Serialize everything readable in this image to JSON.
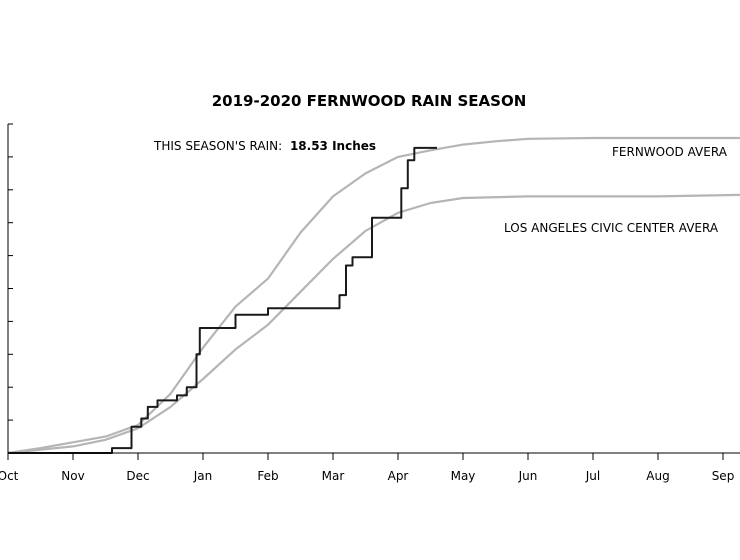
{
  "chart_data": {
    "type": "line",
    "title": "2019-2020 FERNWOOD RAIN SEASON",
    "xlabel": "",
    "ylabel": "",
    "grid": false,
    "categories": [
      "Oct",
      "Nov",
      "Dec",
      "Jan",
      "Feb",
      "Mar",
      "Apr",
      "May",
      "Jun",
      "Jul",
      "Aug",
      "Sep"
    ],
    "xlim": [
      0,
      11.4
    ],
    "ylim": [
      0,
      20
    ],
    "season_total": {
      "label": "THIS SEASON'S RAIN:",
      "value": "18.53 Inches"
    },
    "series": [
      {
        "name": "FERNWOOD AVERAGE",
        "label_text": "FERNWOOD AVERA",
        "color": "#b5b5b5",
        "points": [
          [
            0,
            0
          ],
          [
            0.5,
            0.3
          ],
          [
            1,
            0.65
          ],
          [
            1.5,
            1.0
          ],
          [
            2,
            1.7
          ],
          [
            2.5,
            3.6
          ],
          [
            3,
            6.4
          ],
          [
            3.5,
            8.9
          ],
          [
            4,
            10.6
          ],
          [
            4.5,
            13.4
          ],
          [
            5,
            15.6
          ],
          [
            5.5,
            17.0
          ],
          [
            6,
            18.0
          ],
          [
            6.5,
            18.4
          ],
          [
            7,
            18.75
          ],
          [
            7.5,
            18.95
          ],
          [
            8,
            19.1
          ],
          [
            9,
            19.15
          ],
          [
            10,
            19.15
          ],
          [
            11.4,
            19.15
          ]
        ]
      },
      {
        "name": "LOS ANGELES CIVIC CENTER AVERAGE",
        "label_text": "LOS ANGELES CIVIC CENTER AVERA",
        "color": "#b5b5b5",
        "points": [
          [
            0,
            0
          ],
          [
            1,
            0.4
          ],
          [
            1.5,
            0.8
          ],
          [
            2,
            1.5
          ],
          [
            2.5,
            2.8
          ],
          [
            3,
            4.5
          ],
          [
            3.5,
            6.3
          ],
          [
            4,
            7.8
          ],
          [
            4.5,
            9.8
          ],
          [
            5,
            11.8
          ],
          [
            5.5,
            13.5
          ],
          [
            6,
            14.6
          ],
          [
            6.5,
            15.2
          ],
          [
            7,
            15.5
          ],
          [
            8,
            15.6
          ],
          [
            9,
            15.6
          ],
          [
            10,
            15.6
          ],
          [
            11.4,
            15.7
          ]
        ]
      },
      {
        "name": "2019-2020",
        "color": "#1a1a1a",
        "points": [
          [
            0,
            0
          ],
          [
            1.6,
            0
          ],
          [
            1.6,
            0.3
          ],
          [
            1.9,
            0.3
          ],
          [
            1.9,
            1.6
          ],
          [
            2.05,
            1.6
          ],
          [
            2.05,
            2.1
          ],
          [
            2.15,
            2.1
          ],
          [
            2.15,
            2.8
          ],
          [
            2.3,
            2.8
          ],
          [
            2.3,
            3.2
          ],
          [
            2.6,
            3.2
          ],
          [
            2.6,
            3.5
          ],
          [
            2.75,
            3.5
          ],
          [
            2.75,
            4.0
          ],
          [
            2.9,
            4.0
          ],
          [
            2.9,
            6.0
          ],
          [
            2.95,
            6.0
          ],
          [
            2.95,
            7.6
          ],
          [
            3.5,
            7.6
          ],
          [
            3.5,
            8.4
          ],
          [
            4,
            8.4
          ],
          [
            4,
            8.8
          ],
          [
            5.1,
            8.8
          ],
          [
            5.1,
            9.6
          ],
          [
            5.2,
            9.6
          ],
          [
            5.2,
            11.4
          ],
          [
            5.3,
            11.4
          ],
          [
            5.3,
            11.9
          ],
          [
            5.6,
            11.9
          ],
          [
            5.6,
            14.3
          ],
          [
            6.05,
            14.3
          ],
          [
            6.05,
            16.1
          ],
          [
            6.15,
            16.1
          ],
          [
            6.15,
            17.8
          ],
          [
            6.25,
            17.8
          ],
          [
            6.25,
            18.55
          ],
          [
            6.6,
            18.55
          ]
        ]
      }
    ]
  }
}
